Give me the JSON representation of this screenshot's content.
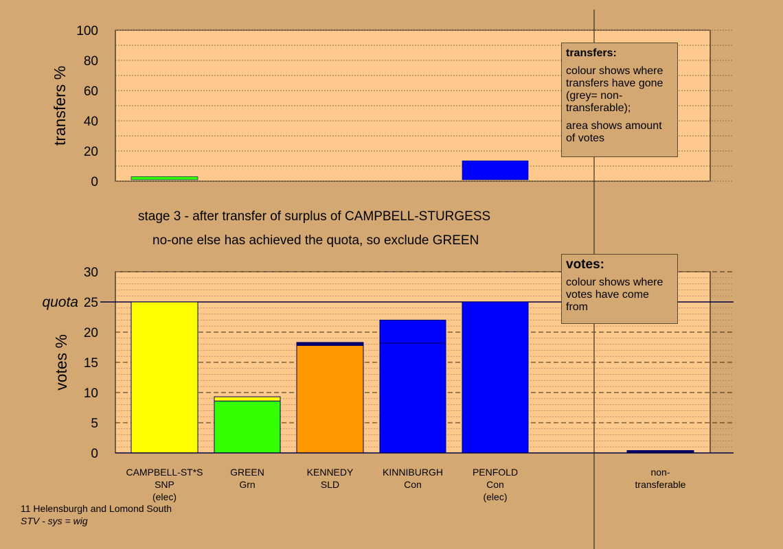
{
  "stage_line_1": "stage 3 - after transfer of surplus of CAMPBELL-STURGESS",
  "stage_line_2": "no-one else has achieved the quota, so exclude GREEN",
  "footer": {
    "line1": "11 Helensburgh and Lomond South",
    "line2": "STV - sys = wig"
  },
  "legend_transfers": {
    "title": "transfers:",
    "p1": "colour shows where transfers have gone (grey= non-transferable);",
    "p2": "area shows amount of votes"
  },
  "legend_votes": {
    "title": "votes:",
    "p1": "colour shows where votes have come from"
  },
  "colors": {
    "background": "#d4a872",
    "plot_area": "#fdc98d",
    "snp": "#ffff00",
    "grn": "#33ff00",
    "sld": "#ff9900",
    "con": "#0000ff",
    "dark": "#000066"
  },
  "candidates": [
    {
      "name": "CAMPBELL-ST*S",
      "party": "SNP",
      "status": "(elec)"
    },
    {
      "name": "GREEN",
      "party": "Grn",
      "status": ""
    },
    {
      "name": "KENNEDY",
      "party": "SLD",
      "status": ""
    },
    {
      "name": "KINNIBURGH",
      "party": "Con",
      "status": ""
    },
    {
      "name": "PENFOLD",
      "party": "Con",
      "status": "(elec)"
    },
    {
      "name": "non-",
      "party": "transferable",
      "status": ""
    }
  ],
  "chart_data": [
    {
      "type": "bar",
      "ylabel": "transfers %",
      "ylim": [
        0,
        100
      ],
      "yticks": [
        0,
        20,
        40,
        60,
        80,
        100
      ],
      "categories": [
        "CAMPBELL-ST*S",
        "GREEN",
        "KENNEDY",
        "KINNIBURGH",
        "PENFOLD",
        "non-transferable"
      ],
      "series": [
        {
          "color": "#33ff00",
          "values": [
            3,
            0,
            0,
            0,
            0,
            0
          ]
        },
        {
          "color": "#0000ff",
          "values": [
            0,
            0,
            0,
            0,
            13.5,
            0
          ]
        }
      ]
    },
    {
      "type": "bar",
      "ylabel": "votes %",
      "ylim": [
        0,
        30
      ],
      "yticks": [
        0,
        5,
        10,
        15,
        20,
        25,
        30
      ],
      "quota": 25,
      "quota_label": "quota",
      "categories": [
        "CAMPBELL-ST*S",
        "GREEN",
        "KENNEDY",
        "KINNIBURGH",
        "PENFOLD",
        "non-transferable"
      ],
      "stacks": [
        [
          {
            "color": "#ffff00",
            "value": 25
          }
        ],
        [
          {
            "color": "#33ff00",
            "value": 8.6
          },
          {
            "color": "#ffff00",
            "value": 0.7
          }
        ],
        [
          {
            "color": "#ff9900",
            "value": 17.8
          },
          {
            "color": "#000066",
            "value": 0.5
          }
        ],
        [
          {
            "color": "#0000ff",
            "value": 18.2
          },
          {
            "color": "#0000ff",
            "value": 3.8
          }
        ],
        [
          {
            "color": "#0000ff",
            "value": 25
          }
        ],
        [
          {
            "color": "#000066",
            "value": 0.4
          }
        ]
      ]
    }
  ]
}
